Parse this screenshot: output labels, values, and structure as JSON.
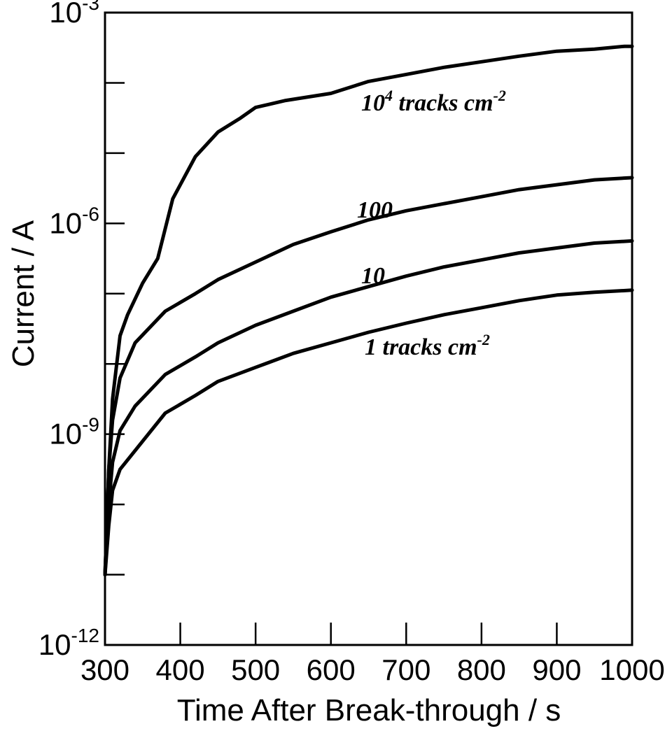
{
  "chart_data": {
    "type": "line",
    "xlabel": "Time After Break-through / s",
    "ylabel": "Current / A",
    "x_ticks": [
      300,
      400,
      500,
      600,
      700,
      800,
      900,
      1000
    ],
    "xlim": [
      300,
      1000
    ],
    "ylim_log10": [
      -12,
      -3
    ],
    "y_scale": "log",
    "y_major_ticks": [
      {
        "exp": -12,
        "base": "10",
        "power": "-12"
      },
      {
        "exp": -9,
        "base": "10",
        "power": "-9"
      },
      {
        "exp": -6,
        "base": "10",
        "power": "-6"
      },
      {
        "exp": -3,
        "base": "10",
        "power": "-3"
      }
    ],
    "y_minor_ticks_log10": [
      -11,
      -10,
      -8,
      -7,
      -5,
      -4
    ],
    "series": [
      {
        "label": {
          "base": "10",
          "sup": "4",
          "rest": " tracks cm",
          "sup2": "-2"
        },
        "x": [
          300,
          305,
          310,
          320,
          330,
          350,
          370,
          390,
          420,
          450,
          480,
          500,
          540,
          600,
          650,
          700,
          750,
          800,
          850,
          900,
          950,
          990,
          1000
        ],
        "log10_y": [
          -11.0,
          -9.5,
          -8.5,
          -7.6,
          -7.3,
          -6.85,
          -6.5,
          -5.65,
          -5.05,
          -4.7,
          -4.5,
          -4.35,
          -4.25,
          -4.15,
          -3.98,
          -3.88,
          -3.78,
          -3.7,
          -3.62,
          -3.55,
          -3.52,
          -3.48,
          -3.48
        ]
      },
      {
        "label": {
          "base": "100",
          "sup": "",
          "rest": "",
          "sup2": ""
        },
        "x": [
          300,
          305,
          310,
          320,
          340,
          380,
          420,
          450,
          500,
          550,
          600,
          650,
          700,
          750,
          800,
          850,
          900,
          950,
          1000
        ],
        "log10_y": [
          -11.0,
          -9.5,
          -8.8,
          -8.2,
          -7.7,
          -7.25,
          -7.0,
          -6.8,
          -6.55,
          -6.3,
          -6.12,
          -5.95,
          -5.82,
          -5.72,
          -5.62,
          -5.52,
          -5.45,
          -5.38,
          -5.35
        ]
      },
      {
        "label": {
          "base": "10",
          "sup": "",
          "rest": "",
          "sup2": ""
        },
        "x": [
          300,
          305,
          310,
          320,
          340,
          380,
          420,
          450,
          500,
          550,
          600,
          650,
          700,
          750,
          800,
          850,
          900,
          950,
          1000
        ],
        "log10_y": [
          -11.0,
          -10.0,
          -9.4,
          -8.95,
          -8.6,
          -8.15,
          -7.9,
          -7.7,
          -7.45,
          -7.25,
          -7.05,
          -6.9,
          -6.75,
          -6.62,
          -6.52,
          -6.42,
          -6.35,
          -6.28,
          -6.25
        ]
      },
      {
        "label": {
          "base": "1 tracks cm",
          "sup": "-2",
          "rest": "",
          "sup2": ""
        },
        "x": [
          300,
          305,
          310,
          320,
          350,
          380,
          420,
          450,
          500,
          550,
          600,
          650,
          700,
          750,
          800,
          850,
          900,
          950,
          1000
        ],
        "log10_y": [
          -11.0,
          -10.3,
          -9.8,
          -9.5,
          -9.1,
          -8.7,
          -8.45,
          -8.25,
          -8.05,
          -7.85,
          -7.7,
          -7.55,
          -7.42,
          -7.3,
          -7.2,
          -7.1,
          -7.02,
          -6.98,
          -6.95
        ]
      }
    ]
  }
}
